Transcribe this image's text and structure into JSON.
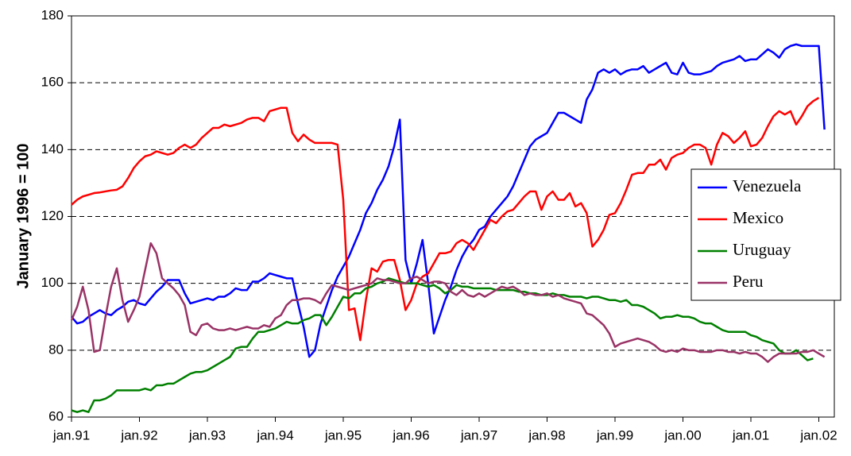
{
  "chart_data": {
    "type": "line",
    "ylabel": "January 1996 = 100",
    "categories": [
      "jan.91",
      null,
      null,
      null,
      null,
      null,
      null,
      null,
      null,
      null,
      null,
      null,
      "jan.92",
      null,
      null,
      null,
      null,
      null,
      null,
      null,
      null,
      null,
      null,
      null,
      "jan.93",
      null,
      null,
      null,
      null,
      null,
      null,
      null,
      null,
      null,
      null,
      null,
      "jan.94",
      null,
      null,
      null,
      null,
      null,
      null,
      null,
      null,
      null,
      null,
      null,
      "jan.95",
      null,
      null,
      null,
      null,
      null,
      null,
      null,
      null,
      null,
      null,
      null,
      "jan.96",
      null,
      null,
      null,
      null,
      null,
      null,
      null,
      null,
      null,
      null,
      null,
      "jan.97",
      null,
      null,
      null,
      null,
      null,
      null,
      null,
      null,
      null,
      null,
      null,
      "jan.98",
      null,
      null,
      null,
      null,
      null,
      null,
      null,
      null,
      null,
      null,
      null,
      "jan.99",
      null,
      null,
      null,
      null,
      null,
      null,
      null,
      null,
      null,
      null,
      null,
      "jan.00",
      null,
      null,
      null,
      null,
      null,
      null,
      null,
      null,
      null,
      null,
      null,
      "jan.01",
      null,
      null,
      null,
      null,
      null,
      null,
      null,
      null,
      null,
      null,
      null,
      "jan.02",
      null
    ],
    "series": [
      {
        "name": "Venezuela",
        "color": "#0000ff",
        "values": [
          90,
          88,
          88.5,
          90,
          91,
          92,
          91,
          90.5,
          92,
          93,
          94.5,
          95,
          94,
          93.5,
          95.5,
          97.5,
          99,
          101,
          101,
          101,
          97,
          94,
          94.5,
          95,
          95.5,
          95,
          96,
          96,
          97,
          98.5,
          98,
          98,
          100.5,
          100.5,
          101.5,
          103,
          102.5,
          102,
          101.5,
          101.5,
          94,
          87,
          78,
          80,
          88,
          93,
          98,
          102,
          105,
          108,
          112,
          116,
          121,
          124,
          128,
          131,
          135,
          141,
          149,
          107,
          100,
          106,
          113,
          100,
          85,
          90,
          95,
          99,
          104,
          108,
          111,
          113,
          116,
          117,
          120,
          122,
          124,
          126,
          129,
          133,
          137,
          141,
          143,
          144,
          145,
          148,
          151,
          151,
          150,
          149,
          148,
          155,
          158,
          163,
          164,
          163,
          164,
          162.5,
          163.5,
          164,
          164,
          165,
          163,
          164,
          165,
          166,
          163,
          162.5,
          166,
          163,
          162.5,
          162.5,
          163,
          163.5,
          165,
          166,
          166.5,
          167,
          168,
          166.5,
          167,
          167,
          168.5,
          170,
          169,
          167.5,
          170,
          171,
          171.5,
          171,
          171,
          171,
          171,
          146
        ]
      },
      {
        "name": "Mexico",
        "color": "#ff0000",
        "values": [
          123.5,
          125,
          126,
          126.5,
          127,
          127.2,
          127.5,
          127.8,
          128,
          129,
          131.5,
          134.5,
          136.5,
          138,
          138.5,
          139.5,
          139,
          138.5,
          139,
          140.5,
          141.5,
          140.5,
          141.5,
          143.5,
          145,
          146.5,
          146.5,
          147.5,
          147,
          147.5,
          148,
          149,
          149.5,
          149.5,
          148.5,
          151.5,
          152,
          152.5,
          152.5,
          145,
          142.5,
          144.5,
          143,
          142,
          142,
          142,
          142,
          141.5,
          125,
          92,
          92.5,
          83,
          95,
          104.5,
          103.5,
          106.5,
          107,
          107,
          101,
          92,
          95,
          100,
          102,
          103,
          106,
          109,
          109,
          109.5,
          112,
          113,
          112,
          110,
          113,
          116,
          119,
          118,
          120,
          121.5,
          122,
          124,
          126,
          127.5,
          127.5,
          122,
          126,
          127.5,
          125,
          125,
          127,
          123,
          124,
          121,
          111,
          113,
          116,
          120.5,
          121,
          124,
          128,
          132.5,
          133,
          133,
          135.5,
          135.5,
          137,
          134,
          137.5,
          138.5,
          139,
          140.5,
          141.5,
          141.5,
          140.5,
          135.5,
          141.5,
          145,
          144,
          142,
          143.5,
          145.5,
          141,
          141.5,
          143.5,
          147,
          150,
          151.5,
          150.5,
          151.5,
          147.5,
          150,
          153,
          154.5,
          155.5,
          null
        ]
      },
      {
        "name": "Uruguay",
        "color": "#008000",
        "values": [
          62,
          61.5,
          62,
          61.5,
          65,
          65,
          65.5,
          66.5,
          68,
          68,
          68,
          68,
          68,
          68.5,
          68,
          69.5,
          69.5,
          70,
          70,
          71,
          72,
          73,
          73.5,
          73.5,
          74,
          75,
          76,
          77,
          78,
          80.5,
          81,
          81,
          83.5,
          85.5,
          85.5,
          86,
          86.5,
          87.5,
          88.5,
          88,
          88,
          89,
          89.5,
          90.5,
          90.5,
          87.5,
          90,
          93,
          96,
          95.5,
          97,
          97,
          98.5,
          99,
          100,
          100.5,
          101.5,
          101,
          100.5,
          100,
          100,
          100,
          99.5,
          99,
          99.5,
          98.5,
          97,
          98,
          99.5,
          99,
          99,
          98.5,
          98.5,
          98.5,
          98.5,
          98,
          98,
          98,
          98,
          97.5,
          97.5,
          97,
          97,
          96.5,
          96.5,
          97,
          96.5,
          96.5,
          96,
          96,
          96,
          95.5,
          96,
          96,
          95.5,
          95,
          95,
          94.5,
          95,
          93.5,
          93.5,
          93,
          92,
          91,
          89.5,
          90,
          90,
          90.5,
          90,
          90,
          89.5,
          88.5,
          88,
          88,
          87,
          86,
          85.5,
          85.5,
          85.5,
          85.5,
          84.5,
          84,
          83,
          82.5,
          82,
          80,
          79,
          79,
          80,
          78.5,
          77,
          77.5,
          null,
          null
        ]
      },
      {
        "name": "Peru",
        "color": "#993366",
        "values": [
          89,
          93,
          99,
          92,
          79.5,
          80,
          90,
          99,
          104.5,
          95,
          88.5,
          92,
          96,
          104,
          112,
          109,
          101.5,
          100,
          98.5,
          96.5,
          93.5,
          85.5,
          84.5,
          87.5,
          88,
          86.5,
          86,
          86,
          86.5,
          86,
          86.5,
          87,
          86.5,
          86.5,
          87.5,
          87,
          89.5,
          90.5,
          93.5,
          95,
          95,
          95.5,
          95.5,
          95,
          94,
          97,
          99.5,
          99,
          98.5,
          98,
          98.5,
          99,
          99.5,
          100,
          101.5,
          101,
          101,
          100.5,
          100,
          100,
          101.5,
          102,
          101,
          100,
          100.5,
          100.5,
          100,
          97.5,
          96.5,
          98,
          96.5,
          96,
          97,
          96,
          97,
          98,
          99,
          98.5,
          99,
          98,
          96.5,
          97,
          96.5,
          96.5,
          97,
          96,
          96.5,
          95.5,
          95,
          94.5,
          94,
          91,
          90.5,
          89,
          87.5,
          85,
          81,
          82,
          82.5,
          83,
          83.5,
          83,
          82.5,
          81.5,
          80,
          79.5,
          80,
          79.5,
          80.5,
          80,
          80,
          79.5,
          79.5,
          79.5,
          80,
          80,
          79.5,
          79.5,
          79,
          79.5,
          79,
          79,
          78,
          76.5,
          78,
          79,
          79,
          79,
          79,
          79.5,
          79.5,
          80,
          79,
          78
        ]
      }
    ],
    "ylim": [
      60,
      180
    ],
    "yticks": [
      60,
      80,
      100,
      120,
      140,
      160,
      180
    ],
    "grid": true,
    "legend": "right"
  }
}
